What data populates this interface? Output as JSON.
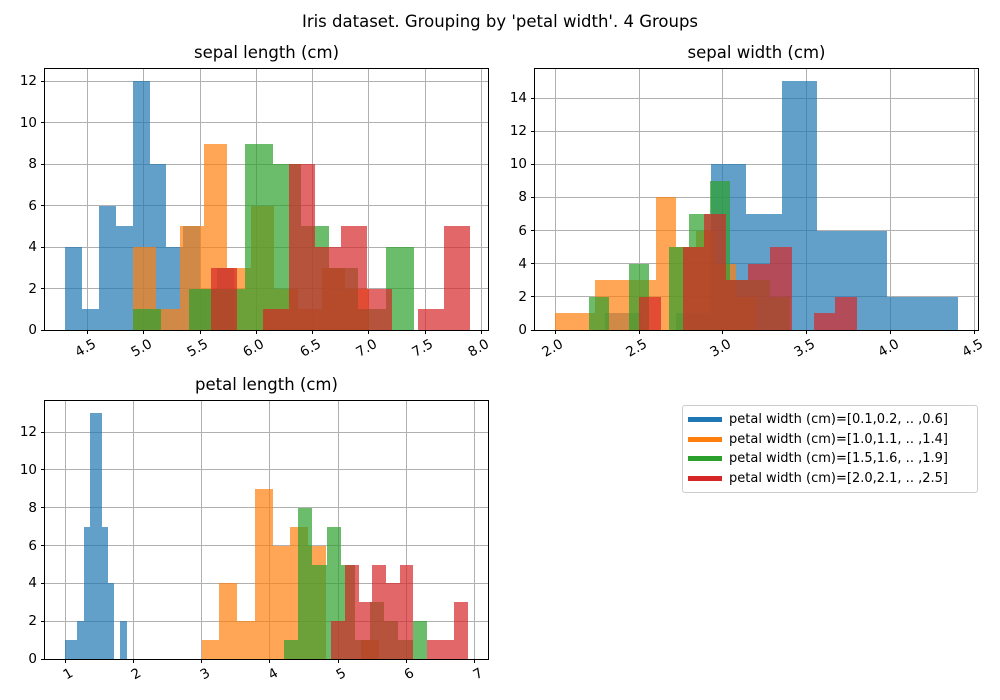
{
  "figure": {
    "suptitle": "Iris dataset. Grouping by 'petal width'. 4 Groups",
    "background": "#ffffff",
    "grid_color": "#b0b0b0",
    "spine_color": "#000000",
    "bar_alpha": 0.7,
    "grid": true
  },
  "legend": {
    "position": "lower-right quadrant",
    "entries": [
      {
        "label": "petal width (cm)=[0.1,0.2, .. ,0.6]",
        "color": "#1f77b4"
      },
      {
        "label": "petal width (cm)=[1.0,1.1, .. ,1.4]",
        "color": "#ff7f0e"
      },
      {
        "label": "petal width (cm)=[1.5,1.6, .. ,1.9]",
        "color": "#2ca02c"
      },
      {
        "label": "petal width (cm)=[2.0,2.1, .. ,2.5]",
        "color": "#d62728"
      }
    ]
  },
  "chart_data": [
    {
      "type": "bar",
      "subtype": "overlaid-histogram",
      "title": "sepal length (cm)",
      "xlim": [
        4.12,
        8.06
      ],
      "ylim": [
        0,
        12.6
      ],
      "xticks": [
        4.5,
        5.0,
        5.5,
        6.0,
        6.5,
        7.0,
        7.5,
        8.0
      ],
      "xtick_labels": [
        "4.5",
        "5.0",
        "5.5",
        "6.0",
        "6.5",
        "7.0",
        "7.5",
        "8.0"
      ],
      "yticks": [
        0,
        2,
        4,
        6,
        8,
        10,
        12
      ],
      "series": [
        {
          "name": "petal width (cm)=[0.1,0.2, .. ,0.6]",
          "color": "#1f77b4",
          "bin_start": 4.3,
          "bin_width": 0.15,
          "counts": [
            4,
            1,
            6,
            5,
            12,
            8,
            4,
            5,
            2,
            3
          ]
        },
        {
          "name": "petal width (cm)=[1.0,1.1, .. ,1.4]",
          "color": "#ff7f0e",
          "bin_start": 4.9,
          "bin_width": 0.21,
          "counts": [
            4,
            1,
            5,
            9,
            3,
            6,
            2,
            1,
            3,
            2
          ]
        },
        {
          "name": "petal width (cm)=[1.5,1.6, .. ,1.9]",
          "color": "#2ca02c",
          "bin_start": 4.9,
          "bin_width": 0.25,
          "counts": [
            1,
            0,
            2,
            2,
            9,
            8,
            5,
            3,
            1,
            4
          ]
        },
        {
          "name": "petal width (cm)=[2.0,2.1, .. ,2.5]",
          "color": "#d62728",
          "bin_start": 5.6,
          "bin_width": 0.23,
          "counts": [
            3,
            0,
            1,
            8,
            4,
            5,
            2,
            0,
            1,
            5
          ]
        }
      ]
    },
    {
      "type": "bar",
      "subtype": "overlaid-histogram",
      "title": "sepal width (cm)",
      "xlim": [
        1.88,
        4.52
      ],
      "ylim": [
        0,
        15.75
      ],
      "xticks": [
        2.0,
        2.5,
        3.0,
        3.5,
        4.0,
        4.5
      ],
      "xtick_labels": [
        "2.0",
        "2.5",
        "3.0",
        "3.5",
        "4.0",
        "4.5"
      ],
      "yticks": [
        0,
        2,
        4,
        6,
        8,
        10,
        12,
        14
      ],
      "series": [
        {
          "name": "petal width (cm)=[0.1,0.2, .. ,0.6]",
          "color": "#1f77b4",
          "bin_start": 2.3,
          "bin_width": 0.21,
          "counts": [
            1,
            0,
            1,
            10,
            7,
            15,
            6,
            6,
            2,
            2
          ]
        },
        {
          "name": "petal width (cm)=[1.0,1.1, .. ,1.4]",
          "color": "#ff7f0e",
          "bin_start": 2.0,
          "bin_width": 0.12,
          "counts": [
            1,
            1,
            3,
            3,
            3,
            8,
            5,
            6,
            4,
            2
          ]
        },
        {
          "name": "petal width (cm)=[1.5,1.6, .. ,1.9]",
          "color": "#2ca02c",
          "bin_start": 2.2,
          "bin_width": 0.12,
          "counts": [
            2,
            0,
            4,
            0,
            5,
            7,
            9,
            3,
            3,
            2
          ]
        },
        {
          "name": "petal width (cm)=[2.0,2.1, .. ,2.5]",
          "color": "#d62728",
          "bin_start": 2.5,
          "bin_width": 0.13,
          "counts": [
            2,
            0,
            5,
            7,
            3,
            4,
            5,
            0,
            1,
            2
          ]
        }
      ]
    },
    {
      "type": "bar",
      "subtype": "overlaid-histogram",
      "title": "petal length (cm)",
      "xlim": [
        0.705,
        7.195
      ],
      "ylim": [
        0,
        13.65
      ],
      "xticks": [
        1,
        2,
        3,
        4,
        5,
        6,
        7
      ],
      "xtick_labels": [
        "1",
        "2",
        "3",
        "4",
        "5",
        "6",
        "7"
      ],
      "yticks": [
        0,
        2,
        4,
        6,
        8,
        10,
        12
      ],
      "series": [
        {
          "name": "petal width (cm)=[0.1,0.2, .. ,0.6]",
          "color": "#1f77b4",
          "bin_start": 1.0,
          "bin_width": 0.09,
          "counts": [
            1,
            1,
            2,
            7,
            13,
            13,
            7,
            4,
            0,
            2
          ]
        },
        {
          "name": "petal width (cm)=[1.0,1.1, .. ,1.4]",
          "color": "#ff7f0e",
          "bin_start": 3.0,
          "bin_width": 0.26,
          "counts": [
            1,
            4,
            2,
            9,
            6,
            7,
            6,
            0,
            0,
            1
          ]
        },
        {
          "name": "petal width (cm)=[1.5,1.6, .. ,1.9]",
          "color": "#2ca02c",
          "bin_start": 4.2,
          "bin_width": 0.21,
          "counts": [
            1,
            8,
            5,
            7,
            5,
            1,
            3,
            2,
            1,
            2
          ]
        },
        {
          "name": "petal width (cm)=[2.0,2.1, .. ,2.5]",
          "color": "#d62728",
          "bin_start": 4.9,
          "bin_width": 0.2,
          "counts": [
            2,
            5,
            3,
            5,
            4,
            5,
            0,
            1,
            1,
            3
          ]
        }
      ]
    }
  ]
}
